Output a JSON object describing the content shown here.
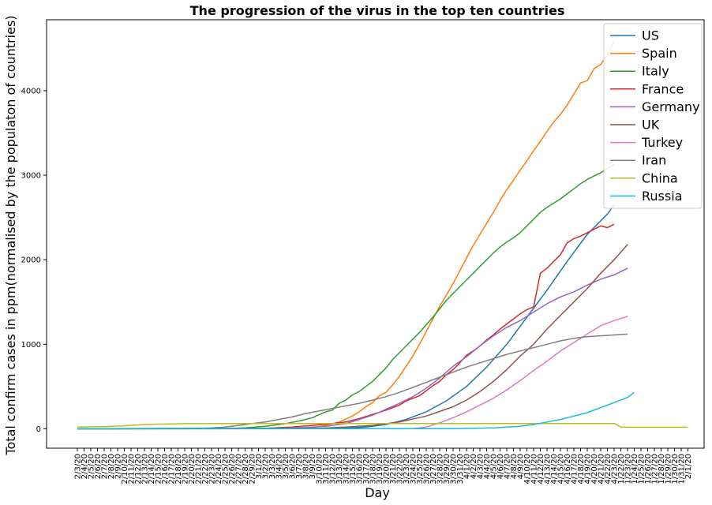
{
  "chart_data": {
    "type": "line",
    "title": "The progression of the virus in the top ten countries",
    "xlabel": "Day",
    "ylabel": "Total confirm cases in ppm(normalised by the populaton of countries)",
    "ylim": [
      -230,
      4840
    ],
    "yticks": [
      0,
      1000,
      2000,
      3000,
      4000
    ],
    "grid": false,
    "legend_position": "top-right",
    "x_tick_labels": [
      "2/3/20",
      "2/4/20",
      "2/5/20",
      "2/6/20",
      "2/7/20",
      "2/8/20",
      "2/9/20",
      "2/10/20",
      "2/11/20",
      "2/12/20",
      "2/13/20",
      "2/14/20",
      "2/15/20",
      "2/16/20",
      "2/17/20",
      "2/18/20",
      "2/19/20",
      "2/20/20",
      "2/21/20",
      "2/22/20",
      "2/23/20",
      "2/24/20",
      "2/25/20",
      "2/26/20",
      "2/27/20",
      "2/28/20",
      "2/29/20",
      "3/1/20",
      "3/2/20",
      "3/3/20",
      "3/4/20",
      "3/5/20",
      "3/6/20",
      "3/7/20",
      "3/8/20",
      "3/9/20",
      "3/10/20",
      "3/11/20",
      "3/12/20",
      "3/13/20",
      "3/14/20",
      "3/15/20",
      "3/16/20",
      "3/17/20",
      "3/18/20",
      "3/19/20",
      "3/20/20",
      "3/21/20",
      "3/22/20",
      "3/23/20",
      "3/24/20",
      "3/25/20",
      "3/26/20",
      "3/27/20",
      "3/28/20",
      "3/29/20",
      "3/30/20",
      "3/31/20",
      "4/1/20",
      "4/2/20",
      "4/3/20",
      "4/4/20",
      "4/5/20",
      "4/6/20",
      "4/7/20",
      "4/8/20",
      "4/9/20",
      "4/10/20",
      "4/11/20",
      "4/12/20",
      "4/13/20",
      "4/14/20",
      "4/15/20",
      "4/16/20",
      "4/17/20",
      "4/18/20",
      "4/19/20",
      "4/20/20",
      "4/21/20",
      "4/22/20",
      "4/23/20",
      "1/22/20",
      "1/23/20",
      "1/24/20",
      "1/25/20",
      "1/26/20",
      "1/27/20",
      "1/28/20",
      "1/29/20",
      "1/30/20",
      "1/31/20",
      "2/1/20"
    ],
    "series": [
      {
        "name": "US",
        "color": "#1f77b4",
        "points": [
          [
            0,
            0
          ],
          [
            36,
            2
          ],
          [
            40,
            8
          ],
          [
            43,
            20
          ],
          [
            46,
            50
          ],
          [
            49,
            110
          ],
          [
            52,
            200
          ],
          [
            55,
            330
          ],
          [
            58,
            500
          ],
          [
            61,
            730
          ],
          [
            64,
            1000
          ],
          [
            67,
            1320
          ],
          [
            70,
            1640
          ],
          [
            73,
            1980
          ],
          [
            76,
            2300
          ],
          [
            79,
            2540
          ],
          [
            80,
            2650
          ]
        ]
      },
      {
        "name": "Spain",
        "color": "#ff7f0e",
        "points": [
          [
            0,
            0
          ],
          [
            30,
            2
          ],
          [
            35,
            10
          ],
          [
            37,
            40
          ],
          [
            39,
            80
          ],
          [
            41,
            150
          ],
          [
            42,
            200
          ],
          [
            43,
            260
          ],
          [
            44,
            310
          ],
          [
            45,
            390
          ],
          [
            46,
            430
          ],
          [
            47,
            520
          ],
          [
            48,
            620
          ],
          [
            49,
            740
          ],
          [
            50,
            860
          ],
          [
            51,
            1000
          ],
          [
            52,
            1150
          ],
          [
            53,
            1300
          ],
          [
            54,
            1450
          ],
          [
            55,
            1580
          ],
          [
            56,
            1720
          ],
          [
            57,
            1870
          ],
          [
            58,
            2020
          ],
          [
            59,
            2170
          ],
          [
            60,
            2300
          ],
          [
            61,
            2430
          ],
          [
            62,
            2560
          ],
          [
            63,
            2700
          ],
          [
            64,
            2830
          ],
          [
            65,
            2940
          ],
          [
            66,
            3060
          ],
          [
            67,
            3170
          ],
          [
            68,
            3290
          ],
          [
            69,
            3400
          ],
          [
            70,
            3520
          ],
          [
            71,
            3630
          ],
          [
            72,
            3720
          ],
          [
            73,
            3830
          ],
          [
            74,
            3960
          ],
          [
            75,
            4090
          ],
          [
            76,
            4120
          ],
          [
            77,
            4260
          ],
          [
            78,
            4310
          ],
          [
            79,
            4430
          ],
          [
            80,
            4580
          ]
        ]
      },
      {
        "name": "Italy",
        "color": "#2ca02c",
        "points": [
          [
            0,
            0
          ],
          [
            22,
            2
          ],
          [
            25,
            10
          ],
          [
            28,
            30
          ],
          [
            31,
            60
          ],
          [
            33,
            90
          ],
          [
            35,
            130
          ],
          [
            37,
            200
          ],
          [
            38,
            220
          ],
          [
            39,
            300
          ],
          [
            40,
            340
          ],
          [
            41,
            400
          ],
          [
            42,
            440
          ],
          [
            43,
            500
          ],
          [
            44,
            560
          ],
          [
            45,
            640
          ],
          [
            46,
            720
          ],
          [
            47,
            820
          ],
          [
            48,
            900
          ],
          [
            49,
            980
          ],
          [
            50,
            1060
          ],
          [
            51,
            1140
          ],
          [
            52,
            1230
          ],
          [
            53,
            1320
          ],
          [
            54,
            1420
          ],
          [
            55,
            1520
          ],
          [
            56,
            1600
          ],
          [
            57,
            1680
          ],
          [
            58,
            1760
          ],
          [
            59,
            1840
          ],
          [
            60,
            1920
          ],
          [
            61,
            2000
          ],
          [
            62,
            2080
          ],
          [
            63,
            2150
          ],
          [
            64,
            2210
          ],
          [
            65,
            2260
          ],
          [
            66,
            2320
          ],
          [
            67,
            2400
          ],
          [
            68,
            2480
          ],
          [
            69,
            2560
          ],
          [
            70,
            2620
          ],
          [
            71,
            2670
          ],
          [
            72,
            2720
          ],
          [
            73,
            2780
          ],
          [
            74,
            2840
          ],
          [
            75,
            2900
          ],
          [
            76,
            2950
          ],
          [
            77,
            2990
          ],
          [
            78,
            3030
          ],
          [
            79,
            3080
          ],
          [
            80,
            3130
          ]
        ]
      },
      {
        "name": "France",
        "color": "#d62728",
        "points": [
          [
            0,
            0
          ],
          [
            28,
            5
          ],
          [
            32,
            20
          ],
          [
            35,
            40
          ],
          [
            38,
            60
          ],
          [
            40,
            80
          ],
          [
            42,
            120
          ],
          [
            44,
            170
          ],
          [
            46,
            220
          ],
          [
            48,
            280
          ],
          [
            49,
            330
          ],
          [
            51,
            390
          ],
          [
            52,
            450
          ],
          [
            53,
            510
          ],
          [
            54,
            560
          ],
          [
            55,
            640
          ],
          [
            56,
            700
          ],
          [
            57,
            780
          ],
          [
            58,
            870
          ],
          [
            59,
            920
          ],
          [
            60,
            980
          ],
          [
            61,
            1050
          ],
          [
            62,
            1110
          ],
          [
            63,
            1180
          ],
          [
            64,
            1240
          ],
          [
            65,
            1300
          ],
          [
            66,
            1360
          ],
          [
            67,
            1410
          ],
          [
            68,
            1440
          ],
          [
            69,
            1840
          ],
          [
            70,
            1900
          ],
          [
            71,
            1980
          ],
          [
            72,
            2060
          ],
          [
            73,
            2200
          ],
          [
            74,
            2250
          ],
          [
            75,
            2280
          ],
          [
            76,
            2320
          ],
          [
            77,
            2360
          ],
          [
            78,
            2400
          ],
          [
            79,
            2380
          ],
          [
            80,
            2420
          ]
        ]
      },
      {
        "name": "Germany",
        "color": "#9467bd",
        "points": [
          [
            0,
            0
          ],
          [
            30,
            5
          ],
          [
            34,
            15
          ],
          [
            37,
            30
          ],
          [
            40,
            60
          ],
          [
            42,
            110
          ],
          [
            44,
            160
          ],
          [
            46,
            230
          ],
          [
            48,
            300
          ],
          [
            50,
            380
          ],
          [
            52,
            480
          ],
          [
            54,
            600
          ],
          [
            56,
            740
          ],
          [
            58,
            850
          ],
          [
            60,
            980
          ],
          [
            62,
            1100
          ],
          [
            64,
            1200
          ],
          [
            66,
            1280
          ],
          [
            68,
            1380
          ],
          [
            70,
            1480
          ],
          [
            72,
            1560
          ],
          [
            74,
            1620
          ],
          [
            76,
            1700
          ],
          [
            78,
            1770
          ],
          [
            80,
            1820
          ],
          [
            82,
            1900
          ]
        ]
      },
      {
        "name": "UK",
        "color": "#8c564b",
        "points": [
          [
            0,
            0
          ],
          [
            36,
            5
          ],
          [
            40,
            20
          ],
          [
            44,
            40
          ],
          [
            48,
            80
          ],
          [
            52,
            150
          ],
          [
            56,
            260
          ],
          [
            58,
            340
          ],
          [
            60,
            440
          ],
          [
            62,
            560
          ],
          [
            64,
            700
          ],
          [
            66,
            860
          ],
          [
            68,
            1000
          ],
          [
            70,
            1180
          ],
          [
            72,
            1340
          ],
          [
            74,
            1500
          ],
          [
            76,
            1660
          ],
          [
            78,
            1840
          ],
          [
            80,
            2000
          ],
          [
            82,
            2180
          ]
        ]
      },
      {
        "name": "Turkey",
        "color": "#e377c2",
        "points": [
          [
            0,
            0
          ],
          [
            50,
            2
          ],
          [
            52,
            20
          ],
          [
            54,
            70
          ],
          [
            56,
            130
          ],
          [
            58,
            200
          ],
          [
            60,
            280
          ],
          [
            62,
            360
          ],
          [
            64,
            460
          ],
          [
            66,
            570
          ],
          [
            68,
            690
          ],
          [
            70,
            800
          ],
          [
            72,
            920
          ],
          [
            74,
            1020
          ],
          [
            76,
            1120
          ],
          [
            78,
            1220
          ],
          [
            80,
            1280
          ],
          [
            82,
            1330
          ]
        ]
      },
      {
        "name": "Iran",
        "color": "#7f7f7f",
        "points": [
          [
            0,
            0
          ],
          [
            18,
            5
          ],
          [
            20,
            10
          ],
          [
            22,
            20
          ],
          [
            24,
            40
          ],
          [
            26,
            60
          ],
          [
            28,
            80
          ],
          [
            30,
            110
          ],
          [
            32,
            140
          ],
          [
            34,
            180
          ],
          [
            36,
            210
          ],
          [
            38,
            240
          ],
          [
            40,
            270
          ],
          [
            42,
            300
          ],
          [
            44,
            340
          ],
          [
            46,
            380
          ],
          [
            48,
            430
          ],
          [
            50,
            490
          ],
          [
            52,
            550
          ],
          [
            54,
            610
          ],
          [
            56,
            670
          ],
          [
            58,
            730
          ],
          [
            60,
            780
          ],
          [
            62,
            830
          ],
          [
            64,
            880
          ],
          [
            66,
            920
          ],
          [
            68,
            960
          ],
          [
            70,
            1000
          ],
          [
            72,
            1040
          ],
          [
            74,
            1070
          ],
          [
            76,
            1090
          ],
          [
            78,
            1100
          ],
          [
            80,
            1110
          ],
          [
            82,
            1120
          ]
        ]
      },
      {
        "name": "China",
        "color": "#bcbd22",
        "points": [
          [
            0,
            20
          ],
          [
            4,
            25
          ],
          [
            7,
            35
          ],
          [
            10,
            50
          ],
          [
            12,
            55
          ],
          [
            14,
            58
          ],
          [
            16,
            60
          ],
          [
            18,
            60
          ],
          [
            20,
            62
          ],
          [
            22,
            62
          ],
          [
            24,
            62
          ],
          [
            26,
            62
          ],
          [
            28,
            62
          ],
          [
            30,
            62
          ],
          [
            35,
            62
          ],
          [
            40,
            62
          ],
          [
            45,
            62
          ],
          [
            50,
            62
          ],
          [
            55,
            62
          ],
          [
            60,
            62
          ],
          [
            65,
            62
          ],
          [
            70,
            62
          ],
          [
            75,
            62
          ],
          [
            80,
            62
          ],
          [
            81,
            18
          ],
          [
            91,
            18
          ]
        ]
      },
      {
        "name": "Russia",
        "color": "#17becf",
        "points": [
          [
            0,
            0
          ],
          [
            56,
            2
          ],
          [
            62,
            10
          ],
          [
            64,
            20
          ],
          [
            66,
            30
          ],
          [
            68,
            50
          ],
          [
            70,
            80
          ],
          [
            72,
            110
          ],
          [
            74,
            150
          ],
          [
            76,
            190
          ],
          [
            78,
            250
          ],
          [
            80,
            310
          ],
          [
            82,
            370
          ],
          [
            83,
            430
          ]
        ]
      }
    ]
  }
}
